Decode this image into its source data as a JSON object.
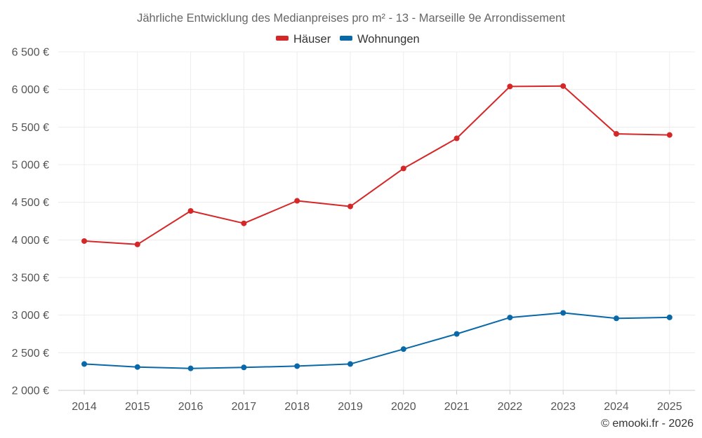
{
  "chart_data": {
    "type": "line",
    "title": "Jährliche Entwicklung des Medianpreises pro m² - 13 - Marseille 9e Arrondissement",
    "categories": [
      "2014",
      "2015",
      "2016",
      "2017",
      "2018",
      "2019",
      "2020",
      "2021",
      "2022",
      "2023",
      "2024",
      "2025"
    ],
    "series": [
      {
        "name": "Häuser",
        "color": "#d62728",
        "values": [
          3985,
          3940,
          4385,
          4220,
          4520,
          4445,
          4950,
          5350,
          6040,
          6045,
          5410,
          5395
        ]
      },
      {
        "name": "Wohnungen",
        "color": "#0868a8",
        "values": [
          2350,
          2310,
          2292,
          2305,
          2322,
          2350,
          2548,
          2750,
          2968,
          3030,
          2957,
          2970
        ]
      }
    ],
    "xlabel": "",
    "ylabel": "",
    "ylim": [
      2000,
      6500
    ],
    "yticks": [
      2000,
      2500,
      3000,
      3500,
      4000,
      4500,
      5000,
      5500,
      6000,
      6500
    ],
    "ytick_labels": [
      "2 000 €",
      "2 500 €",
      "3 000 €",
      "3 500 €",
      "4 000 €",
      "4 500 €",
      "5 000 €",
      "5 500 €",
      "6 000 €",
      "6 500 €"
    ],
    "grid": true,
    "legend_position": "top-center",
    "credit": "© emooki.fr - 2026"
  }
}
